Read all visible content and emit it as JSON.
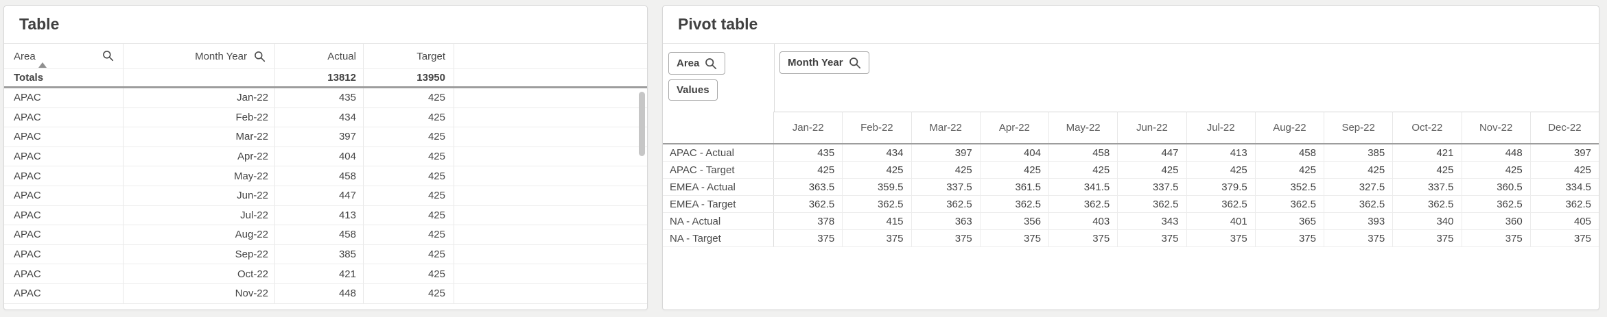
{
  "colors": {
    "page_background": "#f1f1f0",
    "card_background": "#ffffff",
    "card_border": "#d8d8d8",
    "text": "#434343",
    "grid_line": "#ececec",
    "strong_rule": "#9d9d9d",
    "scrollbar_thumb": "#c6c6c6"
  },
  "left_table": {
    "title": "Table",
    "header": {
      "area": "Area",
      "month_year": "Month Year",
      "actual": "Actual",
      "target": "Target"
    },
    "totals": {
      "label": "Totals",
      "actual": "13812",
      "target": "13950"
    },
    "rows": [
      {
        "area": "APAC",
        "month": "Jan-22",
        "actual": "435",
        "target": "425"
      },
      {
        "area": "APAC",
        "month": "Feb-22",
        "actual": "434",
        "target": "425"
      },
      {
        "area": "APAC",
        "month": "Mar-22",
        "actual": "397",
        "target": "425"
      },
      {
        "area": "APAC",
        "month": "Apr-22",
        "actual": "404",
        "target": "425"
      },
      {
        "area": "APAC",
        "month": "May-22",
        "actual": "458",
        "target": "425"
      },
      {
        "area": "APAC",
        "month": "Jun-22",
        "actual": "447",
        "target": "425"
      },
      {
        "area": "APAC",
        "month": "Jul-22",
        "actual": "413",
        "target": "425"
      },
      {
        "area": "APAC",
        "month": "Aug-22",
        "actual": "458",
        "target": "425"
      },
      {
        "area": "APAC",
        "month": "Sep-22",
        "actual": "385",
        "target": "425"
      },
      {
        "area": "APAC",
        "month": "Oct-22",
        "actual": "421",
        "target": "425"
      },
      {
        "area": "APAC",
        "month": "Nov-22",
        "actual": "448",
        "target": "425"
      }
    ]
  },
  "pivot_table": {
    "title": "Pivot table",
    "buttons": {
      "row_dimension": "Area",
      "values": "Values",
      "column_dimension": "Month Year"
    },
    "column_headers": [
      "Jan-22",
      "Feb-22",
      "Mar-22",
      "Apr-22",
      "May-22",
      "Jun-22",
      "Jul-22",
      "Aug-22",
      "Sep-22",
      "Oct-22",
      "Nov-22",
      "Dec-22"
    ],
    "rows": [
      {
        "label": "APAC - Actual",
        "values": [
          "435",
          "434",
          "397",
          "404",
          "458",
          "447",
          "413",
          "458",
          "385",
          "421",
          "448",
          "397"
        ]
      },
      {
        "label": "APAC - Target",
        "values": [
          "425",
          "425",
          "425",
          "425",
          "425",
          "425",
          "425",
          "425",
          "425",
          "425",
          "425",
          "425"
        ]
      },
      {
        "label": "EMEA - Actual",
        "values": [
          "363.5",
          "359.5",
          "337.5",
          "361.5",
          "341.5",
          "337.5",
          "379.5",
          "352.5",
          "327.5",
          "337.5",
          "360.5",
          "334.5"
        ]
      },
      {
        "label": "EMEA - Target",
        "values": [
          "362.5",
          "362.5",
          "362.5",
          "362.5",
          "362.5",
          "362.5",
          "362.5",
          "362.5",
          "362.5",
          "362.5",
          "362.5",
          "362.5"
        ]
      },
      {
        "label": "NA - Actual",
        "values": [
          "378",
          "415",
          "363",
          "356",
          "403",
          "343",
          "401",
          "365",
          "393",
          "340",
          "360",
          "405"
        ]
      },
      {
        "label": "NA - Target",
        "values": [
          "375",
          "375",
          "375",
          "375",
          "375",
          "375",
          "375",
          "375",
          "375",
          "375",
          "375",
          "375"
        ]
      }
    ]
  }
}
